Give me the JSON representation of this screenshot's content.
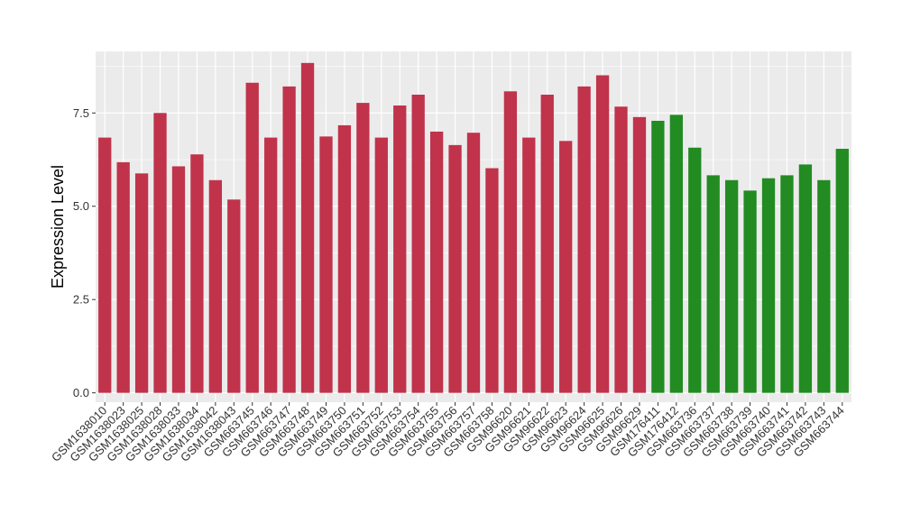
{
  "chart_data": {
    "type": "bar",
    "ylabel": "Expression Level",
    "xlabel": "",
    "ylim": [
      -0.25,
      9.15
    ],
    "yticks": [
      0.0,
      2.5,
      5.0,
      7.5
    ],
    "ytick_labels": [
      "0.0",
      "2.5",
      "5.0",
      "7.5"
    ],
    "grid": true,
    "colors": {
      "group_red": "#C0334B",
      "group_green": "#228B22",
      "panel": "#EBEBEB",
      "grid": "#FFFFFF"
    },
    "categories": [
      "GSM1638010",
      "GSM1638023",
      "GSM1638025",
      "GSM1638028",
      "GSM1638033",
      "GSM1638034",
      "GSM1638042",
      "GSM1638043",
      "GSM663745",
      "GSM663746",
      "GSM663747",
      "GSM663748",
      "GSM663749",
      "GSM663750",
      "GSM663751",
      "GSM663752",
      "GSM663753",
      "GSM663754",
      "GSM663755",
      "GSM663756",
      "GSM663757",
      "GSM663758",
      "GSM96620",
      "GSM96621",
      "GSM96622",
      "GSM96623",
      "GSM96624",
      "GSM96625",
      "GSM96626",
      "GSM96629",
      "GSM176411",
      "GSM176412",
      "GSM663736",
      "GSM663737",
      "GSM663738",
      "GSM663739",
      "GSM663740",
      "GSM663741",
      "GSM663742",
      "GSM663743",
      "GSM663744"
    ],
    "values": [
      6.84,
      6.18,
      5.88,
      7.5,
      6.07,
      6.39,
      5.7,
      5.18,
      8.31,
      6.84,
      8.21,
      8.84,
      6.87,
      7.17,
      7.77,
      6.84,
      7.7,
      7.99,
      7.0,
      6.64,
      6.97,
      6.02,
      8.08,
      6.84,
      7.99,
      6.75,
      8.21,
      8.51,
      7.67,
      7.39,
      7.29,
      7.45,
      6.57,
      5.83,
      5.7,
      5.42,
      5.75,
      5.83,
      6.12,
      5.7,
      6.54
    ],
    "bar_groups": [
      "red",
      "red",
      "red",
      "red",
      "red",
      "red",
      "red",
      "red",
      "red",
      "red",
      "red",
      "red",
      "red",
      "red",
      "red",
      "red",
      "red",
      "red",
      "red",
      "red",
      "red",
      "red",
      "red",
      "red",
      "red",
      "red",
      "red",
      "red",
      "red",
      "red",
      "green",
      "green",
      "green",
      "green",
      "green",
      "green",
      "green",
      "green",
      "green",
      "green",
      "green"
    ]
  }
}
